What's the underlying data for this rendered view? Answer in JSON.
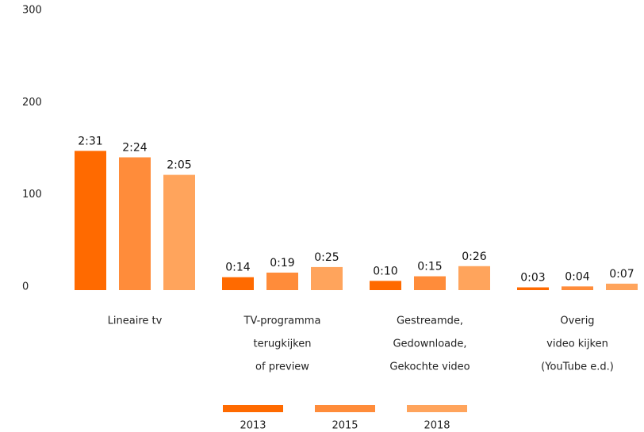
{
  "chart_data": {
    "type": "bar",
    "categories": [
      [
        "Lineaire tv"
      ],
      [
        "TV-programma",
        "terugkijken",
        "of preview"
      ],
      [
        "Gestreamde,",
        "Gedownloade,",
        "Gekochte video"
      ],
      [
        "Overig",
        "video kijken",
        "(YouTube e.d.)"
      ]
    ],
    "series": [
      {
        "name": "2013",
        "color": "#ff6a00",
        "values": [
          151,
          14,
          10,
          3
        ],
        "value_labels": [
          "2:31",
          "0:14",
          "0:10",
          "0:03"
        ]
      },
      {
        "name": "2015",
        "color": "#ff8c3a",
        "values": [
          144,
          19,
          15,
          4
        ],
        "value_labels": [
          "2:24",
          "0:19",
          "0:15",
          "0:04"
        ]
      },
      {
        "name": "2018",
        "color": "#ffa45c",
        "values": [
          125,
          25,
          26,
          7
        ],
        "value_labels": [
          "2:05",
          "0:25",
          "0:26",
          "0:07"
        ]
      }
    ],
    "ylim": [
      0,
      300
    ],
    "yticks": [
      0,
      100,
      200,
      300
    ],
    "grid": false,
    "legend": "bottom"
  }
}
